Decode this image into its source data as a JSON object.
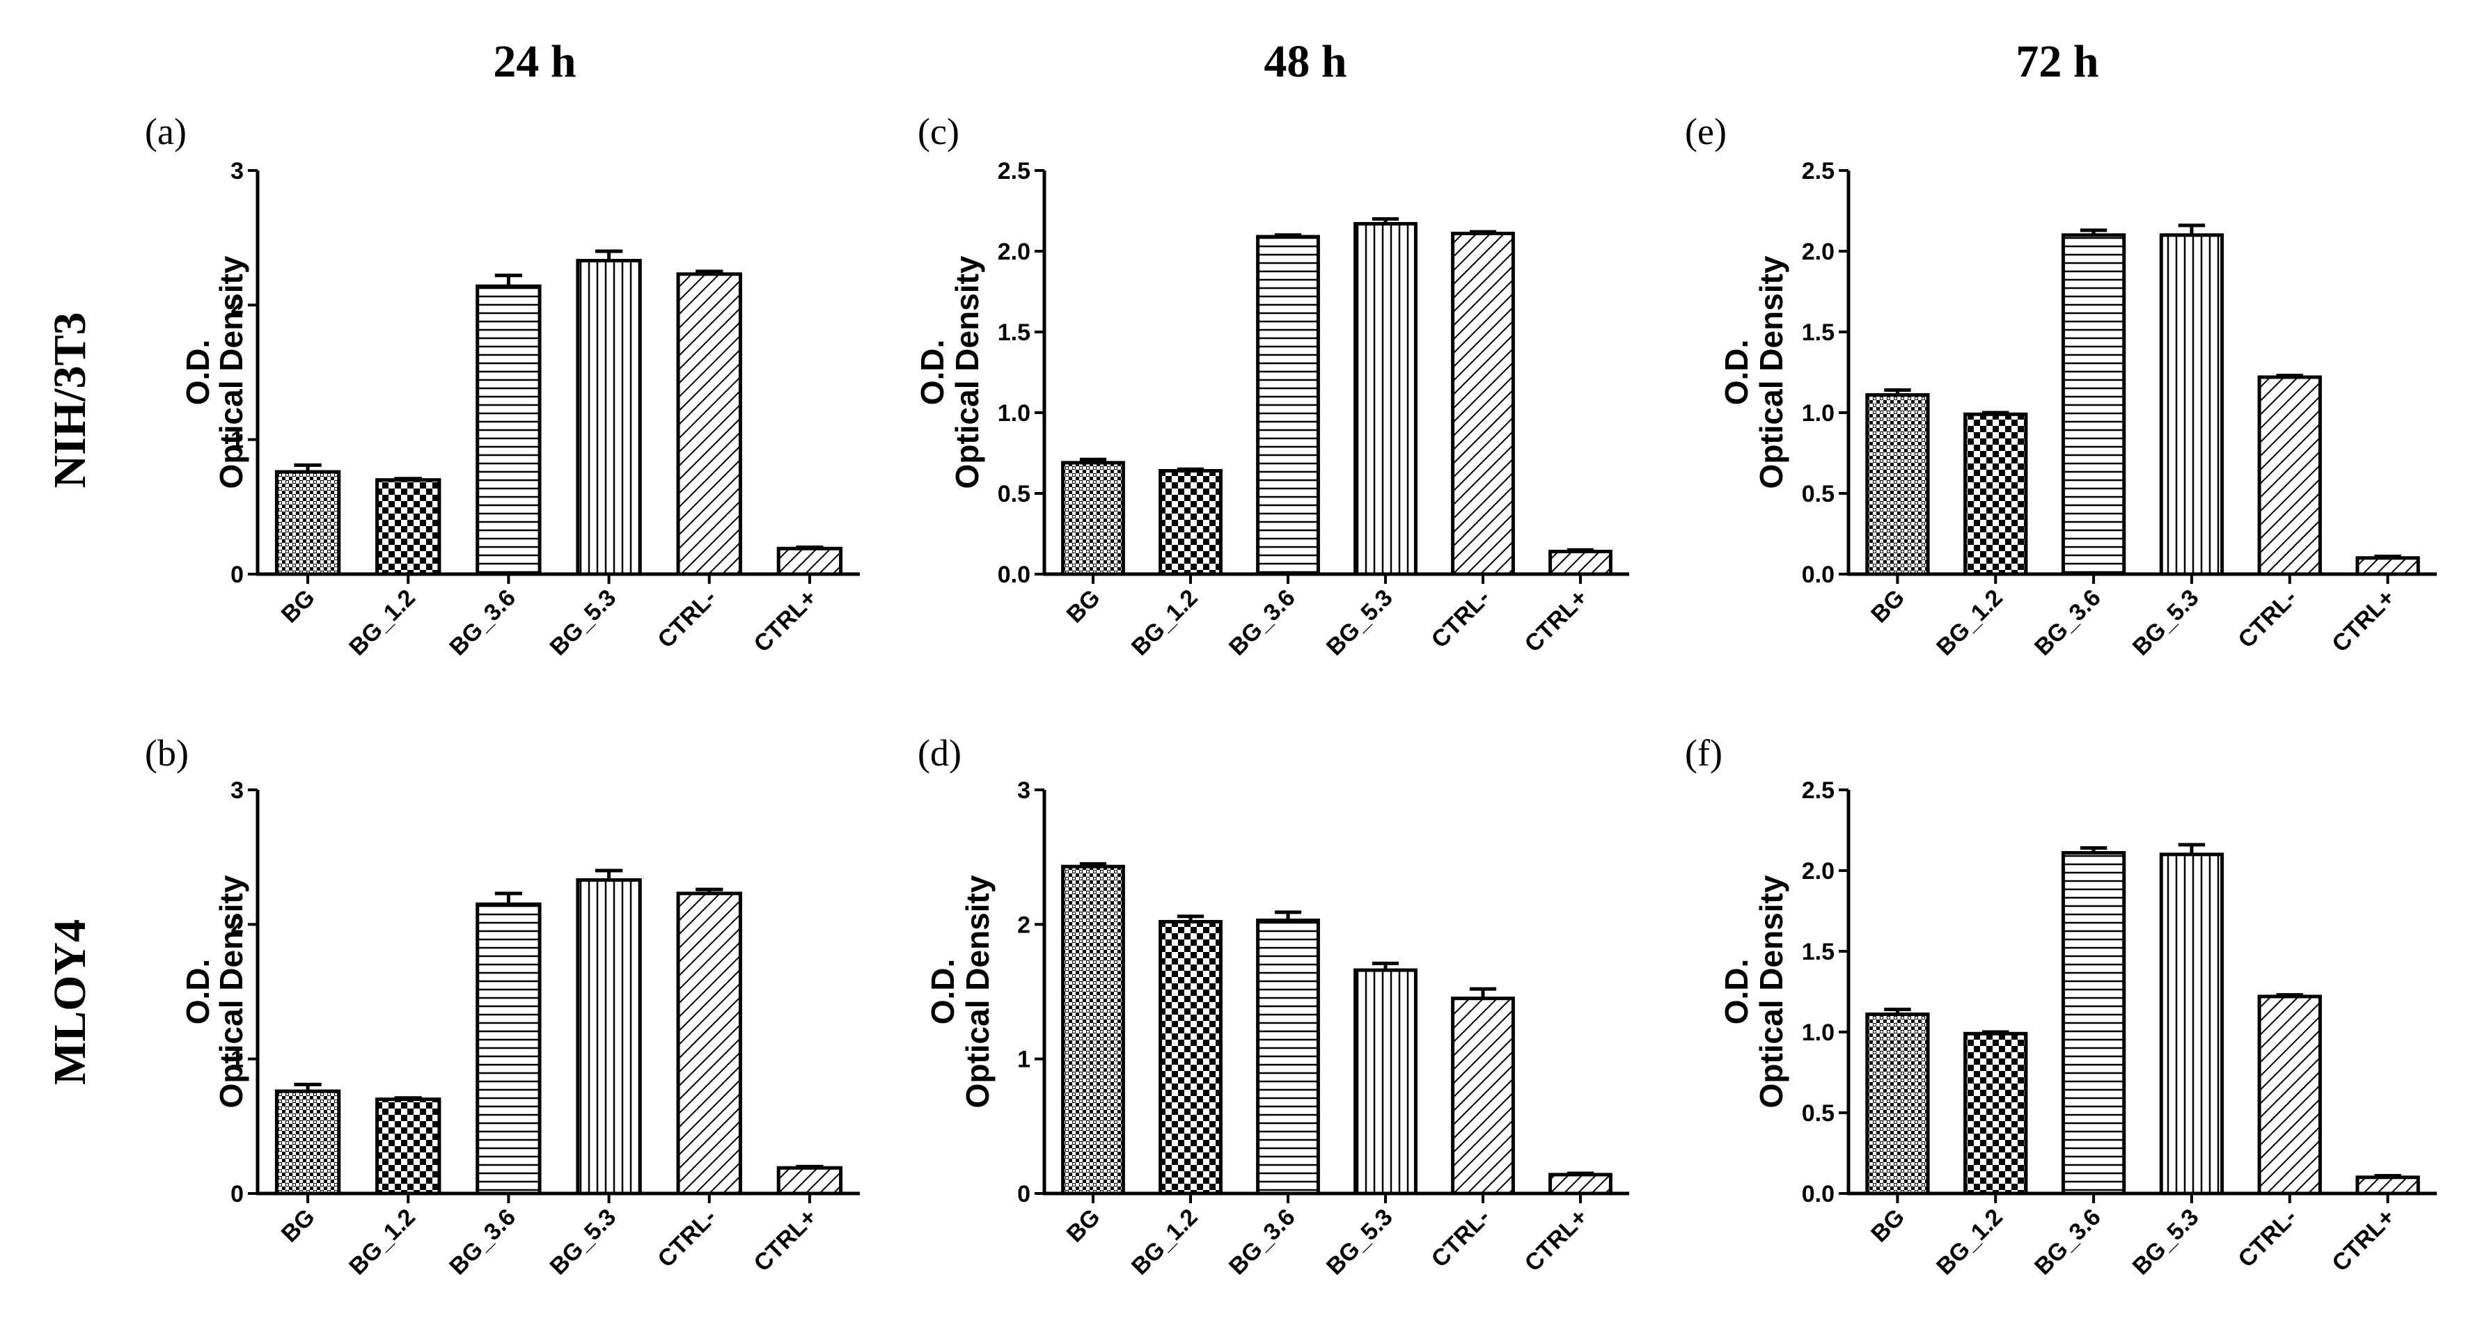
{
  "figure": {
    "column_headers": [
      "24 h",
      "48 h",
      "72 h"
    ],
    "row_labels": [
      "NIH/3T3",
      "MLOY4"
    ],
    "colors": {
      "ink": "#000000",
      "background": "#ffffff"
    }
  },
  "chart_data": [
    {
      "panel": "(a)",
      "type": "bar",
      "time": "24 h",
      "cell_line": "NIH/3T3",
      "ylabel_line1": "O.D.",
      "ylabel_line2": "Optical Density",
      "ylim": [
        0,
        3
      ],
      "yticks": [
        0,
        1,
        2,
        3
      ],
      "tick_decimals": 0,
      "categories": [
        "BG",
        "BG_1.2",
        "BG_3.6",
        "BG_5.3",
        "CTRL-",
        "CTRL+"
      ],
      "patterns": [
        "crosshatch",
        "checker",
        "hlines",
        "vlines",
        "diag",
        "diag"
      ],
      "values": [
        0.76,
        0.7,
        2.14,
        2.33,
        2.23,
        0.19
      ],
      "errors": [
        0.05,
        0.01,
        0.08,
        0.07,
        0.02,
        0.01
      ]
    },
    {
      "panel": "(b)",
      "type": "bar",
      "time": "24 h",
      "cell_line": "MLOY4",
      "ylabel_line1": "O.D.",
      "ylabel_line2": "Optical Density",
      "ylim": [
        0,
        3
      ],
      "yticks": [
        0,
        1,
        2,
        3
      ],
      "tick_decimals": 0,
      "categories": [
        "BG",
        "BG_1.2",
        "BG_3.6",
        "BG_5.3",
        "CTRL-",
        "CTRL+"
      ],
      "patterns": [
        "crosshatch",
        "checker",
        "hlines",
        "vlines",
        "diag",
        "diag"
      ],
      "values": [
        0.76,
        0.7,
        2.15,
        2.33,
        2.23,
        0.19
      ],
      "errors": [
        0.05,
        0.01,
        0.08,
        0.07,
        0.03,
        0.01
      ]
    },
    {
      "panel": "(c)",
      "type": "bar",
      "time": "48 h",
      "cell_line": "NIH/3T3",
      "ylabel_line1": "O.D.",
      "ylabel_line2": "Optical Density",
      "ylim": [
        0,
        2.5
      ],
      "yticks": [
        0,
        0.5,
        1,
        1.5,
        2,
        2.5
      ],
      "tick_decimals": 1,
      "categories": [
        "BG",
        "BG_1.2",
        "BG_3.6",
        "BG_5.3",
        "CTRL-",
        "CTRL+"
      ],
      "patterns": [
        "crosshatch",
        "checker",
        "hlines",
        "vlines",
        "diag",
        "diag"
      ],
      "values": [
        0.69,
        0.64,
        2.09,
        2.17,
        2.11,
        0.14
      ],
      "errors": [
        0.02,
        0.01,
        0.01,
        0.03,
        0.01,
        0.01
      ]
    },
    {
      "panel": "(d)",
      "type": "bar",
      "time": "48 h",
      "cell_line": "MLOY4",
      "ylabel_line1": "O.D.",
      "ylabel_line2": "Optical Density",
      "ylim": [
        0,
        3
      ],
      "yticks": [
        0,
        1,
        2,
        3
      ],
      "tick_decimals": 0,
      "categories": [
        "BG",
        "BG_1.2",
        "BG_3.6",
        "BG_5.3",
        "CTRL-",
        "CTRL+"
      ],
      "patterns": [
        "crosshatch",
        "checker",
        "hlines",
        "vlines",
        "diag",
        "diag"
      ],
      "values": [
        2.43,
        2.02,
        2.03,
        1.66,
        1.45,
        0.14
      ],
      "errors": [
        0.02,
        0.04,
        0.06,
        0.05,
        0.07,
        0.01
      ]
    },
    {
      "panel": "(e)",
      "type": "bar",
      "time": "72 h",
      "cell_line": "NIH/3T3",
      "ylabel_line1": "O.D.",
      "ylabel_line2": "Optical Density",
      "ylim": [
        0,
        2.5
      ],
      "yticks": [
        0,
        0.5,
        1,
        1.5,
        2,
        2.5
      ],
      "tick_decimals": 1,
      "categories": [
        "BG",
        "BG_1.2",
        "BG_3.6",
        "BG_5.3",
        "CTRL-",
        "CTRL+"
      ],
      "patterns": [
        "crosshatch",
        "checker",
        "hlines",
        "vlines",
        "diag",
        "diag"
      ],
      "values": [
        1.11,
        0.99,
        2.1,
        2.1,
        1.22,
        0.1
      ],
      "errors": [
        0.03,
        0.01,
        0.03,
        0.06,
        0.01,
        0.01
      ]
    },
    {
      "panel": "(f)",
      "type": "bar",
      "time": "72 h",
      "cell_line": "MLOY4",
      "ylabel_line1": "O.D.",
      "ylabel_line2": "Optical Density",
      "ylim": [
        0,
        2.5
      ],
      "yticks": [
        0,
        0.5,
        1,
        1.5,
        2,
        2.5
      ],
      "tick_decimals": 1,
      "categories": [
        "BG",
        "BG_1.2",
        "BG_3.6",
        "BG_5.3",
        "CTRL-",
        "CTRL+"
      ],
      "patterns": [
        "crosshatch",
        "checker",
        "hlines",
        "vlines",
        "diag",
        "diag"
      ],
      "values": [
        1.11,
        0.99,
        2.11,
        2.1,
        1.22,
        0.1
      ],
      "errors": [
        0.03,
        0.01,
        0.03,
        0.06,
        0.01,
        0.01
      ]
    }
  ]
}
